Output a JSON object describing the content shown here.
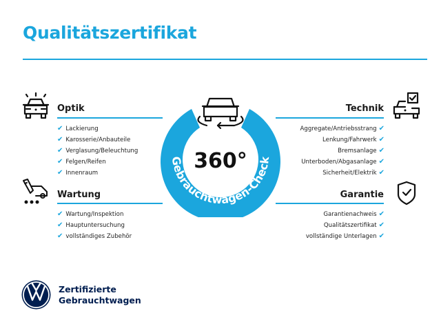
{
  "title": "Qualitätszertifikat",
  "colors": {
    "accent": "#1ba6dd",
    "brand": "#001e50"
  },
  "badge": {
    "value": "360°",
    "ring_text": "Gebrauchtwagen-Check",
    "icon": "car-rotate-icon"
  },
  "sections": {
    "optik": {
      "title": "Optik",
      "icon": "car-lights-icon",
      "items": [
        "Lackierung",
        "Karosserie/Anbauteile",
        "Verglasung/Beleuchtung",
        "Felgen/Reifen",
        "Innenraum"
      ]
    },
    "wartung": {
      "title": "Wartung",
      "icon": "service-tool-icon",
      "items": [
        "Wartung/Inspektion",
        "Hauptuntersuchung",
        "vollständiges Zubehör"
      ]
    },
    "technik": {
      "title": "Technik",
      "icon": "car-checklist-icon",
      "items": [
        "Aggregate/Antriebsstrang",
        "Lenkung/Fahrwerk",
        "Bremsanlage",
        "Unterboden/Abgasanlage",
        "Sicherheit/Elektrik"
      ]
    },
    "garantie": {
      "title": "Garantie",
      "icon": "shield-check-icon",
      "items": [
        "Garantienachweis",
        "Qualitätszertifikat",
        "vollständige Unterlagen"
      ]
    }
  },
  "check_mark": "✔",
  "footer": {
    "line1": "Zertifizierte",
    "line2": "Gebrauchtwagen",
    "logo": "vw-logo"
  }
}
